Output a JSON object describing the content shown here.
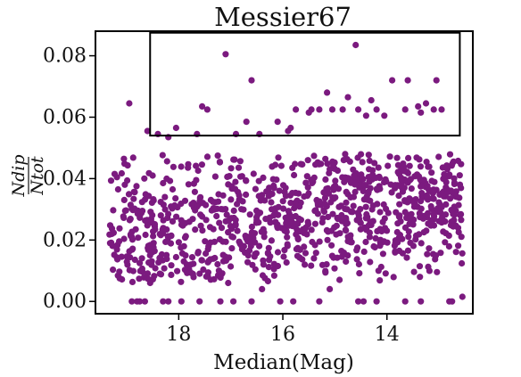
{
  "chart_data": {
    "type": "scatter",
    "title": "Messier67",
    "xlabel": "Median(Mag)",
    "ylabel": {
      "numerator": "Ndip",
      "denominator": "Ntot"
    },
    "x_inverted": true,
    "xlim": [
      19.6,
      12.35
    ],
    "ylim": [
      -0.004,
      0.088
    ],
    "x_ticks": [
      {
        "value": 18,
        "label": "18"
      },
      {
        "value": 16,
        "label": "16"
      },
      {
        "value": 14,
        "label": "14"
      }
    ],
    "y_ticks": [
      {
        "value": 0.0,
        "label": "0.00"
      },
      {
        "value": 0.02,
        "label": "0.02"
      },
      {
        "value": 0.04,
        "label": "0.04"
      },
      {
        "value": 0.06,
        "label": "0.06"
      },
      {
        "value": 0.08,
        "label": "0.08"
      }
    ],
    "grid": false,
    "legend": "none",
    "marker_color": "#7b1a7f",
    "highlight_box": {
      "x": [
        18.55,
        12.6
      ],
      "y": [
        0.054,
        0.0875
      ]
    },
    "series": [
      {
        "x": [
          18.95,
          18.6,
          17.1,
          16.6,
          14.6,
          13.6,
          13.9,
          13.05,
          15.15,
          14.75,
          14.3,
          13.25,
          13.1,
          13.35,
          12.95,
          13.65,
          13.4,
          17.55,
          17.45,
          17.65,
          18.05,
          18.4,
          18.2,
          14.05,
          14.55,
          14.4,
          14.85,
          15.05,
          15.3,
          15.5,
          15.75,
          16.9,
          16.1,
          15.85,
          16.45,
          15.45,
          16.7,
          14.2,
          15.9
        ],
        "y": [
          0.0645,
          0.0555,
          0.0805,
          0.072,
          0.0835,
          0.072,
          0.072,
          0.072,
          0.068,
          0.0665,
          0.0655,
          0.0645,
          0.0625,
          0.0615,
          0.0625,
          0.0625,
          0.0635,
          0.0635,
          0.0625,
          0.0545,
          0.0565,
          0.0545,
          0.0535,
          0.0605,
          0.0625,
          0.0605,
          0.0625,
          0.0625,
          0.0625,
          0.0615,
          0.0625,
          0.0545,
          0.0585,
          0.0565,
          0.0545,
          0.0625,
          0.0585,
          0.0625,
          0.0555
        ],
        "count": 39
      },
      {
        "x": [
          18.9,
          18.8,
          18.75,
          18.65,
          18.3,
          18.2,
          17.95,
          17.6,
          17.2,
          16.95,
          16.6,
          16.05,
          15.8,
          15.3,
          14.55,
          14.45,
          14.2,
          13.65,
          13.35,
          12.8,
          12.75,
          12.55,
          18.55,
          17.05,
          16.4,
          15.1
        ],
        "y": [
          0,
          0,
          0,
          0,
          0,
          0,
          0,
          0,
          0,
          0,
          0,
          0,
          0,
          0,
          0,
          0,
          0,
          0,
          0,
          0,
          0,
          0.0015,
          0.006,
          0.006,
          0.004,
          0.004
        ],
        "count": 26
      },
      {
        "generated": true,
        "x_range": [
          19.35,
          12.55
        ],
        "y_trend": [
          [
            19.3,
            0.024
          ],
          [
            18,
            0.022
          ],
          [
            17,
            0.024
          ],
          [
            16,
            0.027
          ],
          [
            15,
            0.031
          ],
          [
            14,
            0.031
          ],
          [
            13,
            0.032
          ]
        ],
        "y_spread": 0.012,
        "count": 980
      }
    ]
  }
}
